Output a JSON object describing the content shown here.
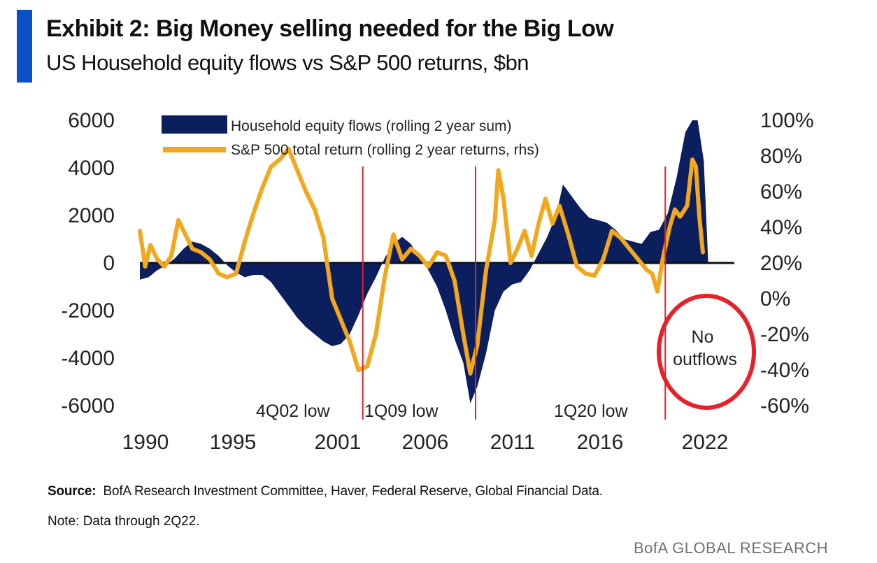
{
  "header": {
    "title": "Exhibit 2: Big Money selling needed for the Big Low",
    "subtitle": "US Household equity flows vs S&P 500 returns, $bn"
  },
  "footer": {
    "source_label": "Source:",
    "source_text": "BofA Research Investment Committee, Haver, Federal Reserve, Global Financial Data.",
    "note": "Note: Data through 2Q22.",
    "brand": "BofA GLOBAL RESEARCH"
  },
  "colors": {
    "accent": "#0a50c8",
    "flows": "#0b1f5e",
    "returns": "#f2a71c",
    "markers": "#e8202a"
  },
  "chart_data": {
    "type": "area",
    "x_ticks": [
      "1990",
      "1995",
      "2001",
      "2006",
      "2011",
      "2016",
      "2022"
    ],
    "y_left": {
      "ticks": [
        6000,
        4000,
        2000,
        0,
        -2000,
        -4000,
        -6000
      ],
      "range": [
        -6000,
        6000
      ]
    },
    "y_right": {
      "ticks": [
        "100%",
        "80%",
        "60%",
        "40%",
        "20%",
        "0%",
        "-20%",
        "-40%",
        "-60%"
      ],
      "range": [
        -60,
        100
      ]
    },
    "legend": [
      "Household equity flows (rolling 2 year sum)",
      "S&P 500 total return (rolling 2 year returns, rhs)"
    ],
    "legend_position": "top-center",
    "series": [
      {
        "name": "Household equity flows (rolling 2 year sum)",
        "type": "area",
        "axis": "left",
        "points": [
          [
            1990.0,
            -700
          ],
          [
            1990.5,
            -600
          ],
          [
            1991.0,
            -300
          ],
          [
            1991.5,
            -100
          ],
          [
            1992.0,
            200
          ],
          [
            1992.5,
            600
          ],
          [
            1993.0,
            900
          ],
          [
            1993.5,
            800
          ],
          [
            1994.0,
            600
          ],
          [
            1994.5,
            300
          ],
          [
            1995.0,
            -100
          ],
          [
            1995.5,
            -400
          ],
          [
            1996.0,
            -600
          ],
          [
            1996.5,
            -500
          ],
          [
            1997.0,
            -500
          ],
          [
            1997.5,
            -800
          ],
          [
            1998.0,
            -1300
          ],
          [
            1998.5,
            -1800
          ],
          [
            1999.0,
            -2300
          ],
          [
            1999.5,
            -2700
          ],
          [
            2000.0,
            -3000
          ],
          [
            2000.5,
            -3300
          ],
          [
            2001.0,
            -3500
          ],
          [
            2001.5,
            -3400
          ],
          [
            2002.0,
            -3000
          ],
          [
            2002.5,
            -2200
          ],
          [
            2003.0,
            -1300
          ],
          [
            2003.5,
            -600
          ],
          [
            2004.0,
            200
          ],
          [
            2004.5,
            800
          ],
          [
            2005.0,
            1100
          ],
          [
            2005.5,
            800
          ],
          [
            2006.0,
            200
          ],
          [
            2006.5,
            -300
          ],
          [
            2007.0,
            -1000
          ],
          [
            2007.5,
            -2000
          ],
          [
            2008.0,
            -3200
          ],
          [
            2008.5,
            -4200
          ],
          [
            2008.9,
            -5900
          ],
          [
            2009.3,
            -5200
          ],
          [
            2009.8,
            -3800
          ],
          [
            2010.3,
            -2000
          ],
          [
            2010.8,
            -1200
          ],
          [
            2011.3,
            -900
          ],
          [
            2011.8,
            -800
          ],
          [
            2012.3,
            -300
          ],
          [
            2012.8,
            400
          ],
          [
            2013.3,
            1100
          ],
          [
            2013.8,
            2000
          ],
          [
            2014.2,
            3300
          ],
          [
            2014.7,
            2800
          ],
          [
            2015.2,
            2300
          ],
          [
            2015.7,
            1900
          ],
          [
            2016.2,
            1800
          ],
          [
            2016.7,
            1700
          ],
          [
            2017.2,
            1400
          ],
          [
            2017.7,
            1000
          ],
          [
            2018.2,
            900
          ],
          [
            2018.7,
            800
          ],
          [
            2019.2,
            1300
          ],
          [
            2019.7,
            1400
          ],
          [
            2020.2,
            2100
          ],
          [
            2020.7,
            3600
          ],
          [
            2021.2,
            5500
          ],
          [
            2021.6,
            6000
          ],
          [
            2021.9,
            6000
          ],
          [
            2022.25,
            4300
          ],
          [
            2022.5,
            100
          ]
        ]
      },
      {
        "name": "S&P 500 total return (rolling 2 year returns, rhs)",
        "type": "line",
        "axis": "right",
        "points": [
          [
            1990.0,
            38
          ],
          [
            1990.3,
            18
          ],
          [
            1990.6,
            30
          ],
          [
            1991.0,
            22
          ],
          [
            1991.4,
            18
          ],
          [
            1991.8,
            24
          ],
          [
            1992.2,
            44
          ],
          [
            1992.6,
            36
          ],
          [
            1993.0,
            28
          ],
          [
            1993.5,
            26
          ],
          [
            1994.0,
            22
          ],
          [
            1994.5,
            14
          ],
          [
            1995.0,
            12
          ],
          [
            1995.5,
            14
          ],
          [
            1996.0,
            32
          ],
          [
            1996.5,
            48
          ],
          [
            1997.0,
            62
          ],
          [
            1997.5,
            74
          ],
          [
            1998.0,
            78
          ],
          [
            1998.5,
            84
          ],
          [
            1999.0,
            72
          ],
          [
            1999.5,
            60
          ],
          [
            2000.0,
            50
          ],
          [
            2000.5,
            34
          ],
          [
            2001.0,
            0
          ],
          [
            2001.5,
            -12
          ],
          [
            2002.0,
            -24
          ],
          [
            2002.5,
            -40
          ],
          [
            2003.0,
            -38
          ],
          [
            2003.5,
            -20
          ],
          [
            2004.0,
            12
          ],
          [
            2004.5,
            36
          ],
          [
            2005.0,
            22
          ],
          [
            2005.5,
            28
          ],
          [
            2006.0,
            24
          ],
          [
            2006.5,
            18
          ],
          [
            2007.0,
            26
          ],
          [
            2007.5,
            24
          ],
          [
            2008.0,
            10
          ],
          [
            2008.5,
            -20
          ],
          [
            2008.9,
            -42
          ],
          [
            2009.3,
            -26
          ],
          [
            2009.8,
            16
          ],
          [
            2010.3,
            44
          ],
          [
            2010.5,
            72
          ],
          [
            2010.8,
            56
          ],
          [
            2011.2,
            20
          ],
          [
            2011.6,
            28
          ],
          [
            2012.0,
            38
          ],
          [
            2012.4,
            24
          ],
          [
            2012.8,
            42
          ],
          [
            2013.2,
            56
          ],
          [
            2013.6,
            42
          ],
          [
            2014.0,
            52
          ],
          [
            2014.5,
            36
          ],
          [
            2015.0,
            18
          ],
          [
            2015.5,
            14
          ],
          [
            2016.0,
            13
          ],
          [
            2016.5,
            22
          ],
          [
            2017.0,
            38
          ],
          [
            2017.5,
            34
          ],
          [
            2018.0,
            28
          ],
          [
            2018.5,
            22
          ],
          [
            2019.0,
            16
          ],
          [
            2019.3,
            14
          ],
          [
            2019.6,
            4
          ],
          [
            2019.9,
            22
          ],
          [
            2020.3,
            40
          ],
          [
            2020.6,
            50
          ],
          [
            2020.9,
            46
          ],
          [
            2021.3,
            52
          ],
          [
            2021.6,
            78
          ],
          [
            2021.8,
            74
          ],
          [
            2022.0,
            46
          ],
          [
            2022.2,
            26
          ]
        ]
      }
    ],
    "vlines": [
      2002.75,
      2009.2,
      2020.05
    ],
    "annotations": [
      "4Q02 low",
      "1Q09 low",
      "1Q20 low",
      "No outflows"
    ]
  }
}
